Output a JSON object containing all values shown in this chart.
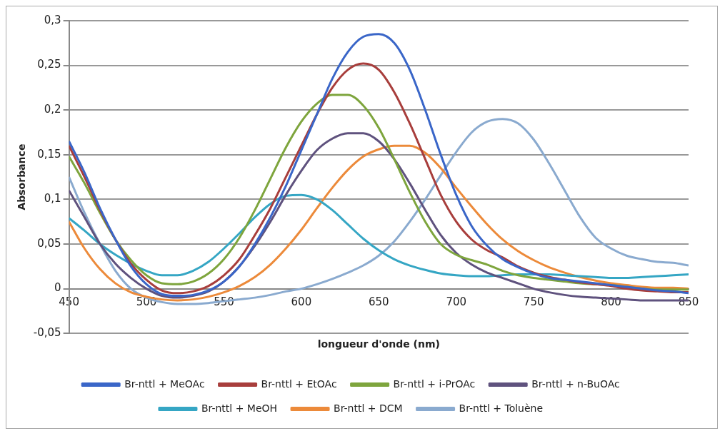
{
  "chart_data": {
    "type": "line",
    "xlabel": "longueur d'onde (nm)",
    "ylabel": "Absorbance",
    "x": [
      450,
      460,
      470,
      480,
      490,
      500,
      510,
      520,
      530,
      540,
      550,
      560,
      570,
      580,
      590,
      600,
      610,
      620,
      630,
      640,
      650,
      660,
      670,
      680,
      690,
      700,
      710,
      720,
      730,
      740,
      750,
      760,
      770,
      780,
      790,
      800,
      810,
      820,
      830,
      840,
      850
    ],
    "xlim": [
      450,
      850
    ],
    "xticks": [
      450,
      500,
      550,
      600,
      650,
      700,
      750,
      800,
      850
    ],
    "ylim": [
      -0.05,
      0.3
    ],
    "yticks": [
      {
        "value": -0.05,
        "label": "-0,05"
      },
      {
        "value": 0,
        "label": "0"
      },
      {
        "value": 0.05,
        "label": "0,05"
      },
      {
        "value": 0.1,
        "label": "0,1"
      },
      {
        "value": 0.15,
        "label": "0,15"
      },
      {
        "value": 0.2,
        "label": "0,2"
      },
      {
        "value": 0.25,
        "label": "0,25"
      },
      {
        "value": 0.3,
        "label": "0,3"
      }
    ],
    "grid": "y",
    "legend": "bottom",
    "marker": "none",
    "line_style": "solid",
    "series": [
      {
        "name": "Br-nttl + MeOAc",
        "color": "#3a66c8",
        "values": [
          0.165,
          0.13,
          0.09,
          0.055,
          0.025,
          0.005,
          -0.006,
          -0.008,
          -0.007,
          -0.002,
          0.008,
          0.025,
          0.05,
          0.08,
          0.115,
          0.155,
          0.195,
          0.235,
          0.265,
          0.282,
          0.285,
          0.275,
          0.245,
          0.2,
          0.15,
          0.105,
          0.07,
          0.048,
          0.033,
          0.024,
          0.017,
          0.012,
          0.01,
          0.008,
          0.006,
          0.004,
          0.002,
          0.0,
          -0.002,
          -0.003,
          -0.005
        ]
      },
      {
        "name": "Br-nttl + EtOAc",
        "color": "#a83e3c",
        "values": [
          0.16,
          0.125,
          0.088,
          0.055,
          0.028,
          0.01,
          -0.002,
          -0.005,
          -0.003,
          0.003,
          0.015,
          0.033,
          0.06,
          0.09,
          0.125,
          0.16,
          0.195,
          0.225,
          0.245,
          0.252,
          0.245,
          0.22,
          0.185,
          0.145,
          0.105,
          0.075,
          0.055,
          0.043,
          0.035,
          0.025,
          0.018,
          0.013,
          0.01,
          0.007,
          0.005,
          0.003,
          0.0,
          -0.002,
          -0.003,
          -0.004,
          -0.004
        ]
      },
      {
        "name": "Br-nttl + i-PrOAc",
        "color": "#7ea53d",
        "values": [
          0.148,
          0.118,
          0.085,
          0.055,
          0.032,
          0.015,
          0.006,
          0.005,
          0.008,
          0.017,
          0.033,
          0.057,
          0.088,
          0.123,
          0.158,
          0.187,
          0.207,
          0.217,
          0.217,
          0.205,
          0.18,
          0.145,
          0.108,
          0.075,
          0.05,
          0.038,
          0.032,
          0.027,
          0.02,
          0.015,
          0.012,
          0.01,
          0.008,
          0.006,
          0.005,
          0.004,
          0.002,
          0.0,
          -0.001,
          -0.001,
          -0.001
        ]
      },
      {
        "name": "Br-nttl + n-BuOAc",
        "color": "#5f527e",
        "values": [
          0.11,
          0.08,
          0.05,
          0.028,
          0.012,
          0.0,
          -0.008,
          -0.01,
          -0.008,
          -0.003,
          0.008,
          0.025,
          0.048,
          0.075,
          0.105,
          0.132,
          0.155,
          0.168,
          0.174,
          0.174,
          0.165,
          0.145,
          0.118,
          0.088,
          0.06,
          0.04,
          0.027,
          0.018,
          0.012,
          0.006,
          0.0,
          -0.004,
          -0.007,
          -0.009,
          -0.01,
          -0.011,
          -0.012,
          -0.013,
          -0.013,
          -0.013,
          -0.013
        ]
      },
      {
        "name": "Br-nttl + MeOH",
        "color": "#35a6c4",
        "values": [
          0.079,
          0.065,
          0.05,
          0.038,
          0.028,
          0.02,
          0.015,
          0.015,
          0.02,
          0.03,
          0.045,
          0.062,
          0.08,
          0.095,
          0.104,
          0.105,
          0.1,
          0.088,
          0.072,
          0.056,
          0.043,
          0.033,
          0.026,
          0.021,
          0.017,
          0.015,
          0.014,
          0.014,
          0.015,
          0.016,
          0.016,
          0.016,
          0.015,
          0.014,
          0.013,
          0.012,
          0.012,
          0.013,
          0.014,
          0.015,
          0.016
        ]
      },
      {
        "name": "Br-nttl + DCM",
        "color": "#ec8a3a",
        "values": [
          0.075,
          0.045,
          0.022,
          0.006,
          -0.004,
          -0.009,
          -0.012,
          -0.013,
          -0.012,
          -0.009,
          -0.004,
          0.003,
          0.013,
          0.027,
          0.045,
          0.066,
          0.09,
          0.113,
          0.133,
          0.148,
          0.156,
          0.16,
          0.16,
          0.152,
          0.135,
          0.113,
          0.092,
          0.072,
          0.055,
          0.042,
          0.032,
          0.024,
          0.018,
          0.013,
          0.009,
          0.006,
          0.004,
          0.002,
          0.001,
          0.001,
          0.0
        ]
      },
      {
        "name": "Br-nttl + Toluène",
        "color": "#8aaacf",
        "values": [
          0.125,
          0.085,
          0.05,
          0.02,
          0.0,
          -0.01,
          -0.015,
          -0.017,
          -0.017,
          -0.016,
          -0.014,
          -0.012,
          -0.01,
          -0.007,
          -0.003,
          0.0,
          0.005,
          0.011,
          0.018,
          0.026,
          0.037,
          0.053,
          0.075,
          0.1,
          0.127,
          0.153,
          0.175,
          0.187,
          0.19,
          0.185,
          0.167,
          0.14,
          0.11,
          0.08,
          0.057,
          0.045,
          0.037,
          0.033,
          0.03,
          0.029,
          0.026
        ]
      }
    ]
  }
}
